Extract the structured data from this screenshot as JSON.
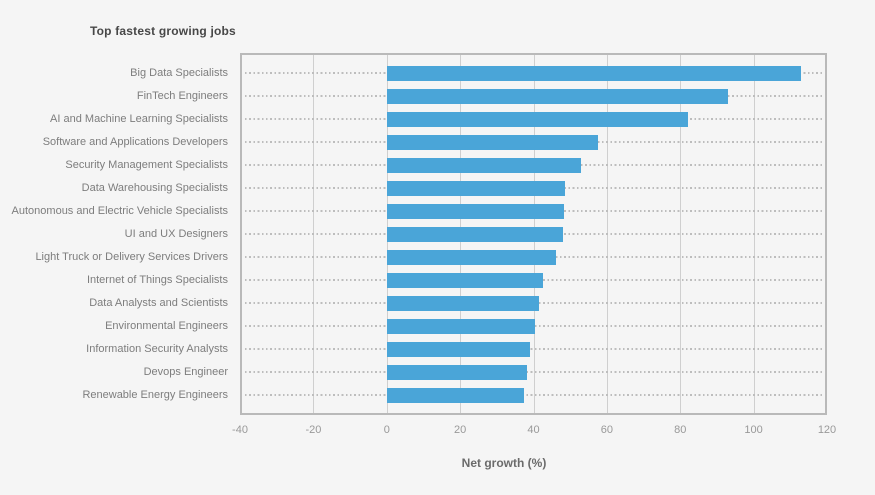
{
  "colors": {
    "background": "#f5f5f5",
    "bar": "#4aa5d8",
    "gridline": "#cfcfcf",
    "plot_border": "#b9b9b9",
    "title_text": "#474747",
    "category_text": "#7d7d7d",
    "tick_text": "#999999"
  },
  "chart_data": {
    "type": "bar",
    "orientation": "horizontal",
    "title": "Top fastest growing jobs",
    "xlabel": "Net growth (%)",
    "ylabel": "",
    "xlim": [
      -40,
      120
    ],
    "xticks": [
      -40,
      -20,
      0,
      20,
      40,
      60,
      80,
      100,
      120
    ],
    "grid": {
      "vertical_lines": "solid",
      "category_guides": "dotted"
    },
    "legend": "none",
    "categories": [
      "Big Data Specialists",
      "FinTech Engineers",
      "AI and Machine Learning Specialists",
      "Software and Applications Developers",
      "Security Management Specialists",
      "Data Warehousing Specialists",
      "Autonomous and Electric Vehicle Specialists",
      "UI and UX Designers",
      "Light Truck or Delivery Services Drivers",
      "Internet of Things Specialists",
      "Data Analysts and Scientists",
      "Environmental Engineers",
      "Information Security Analysts",
      "Devops Engineer",
      "Renewable Energy Engineers"
    ],
    "values": [
      113,
      93,
      82,
      57.5,
      53,
      48.5,
      48.3,
      48,
      46,
      42.5,
      41.4,
      40.3,
      39,
      38.2,
      37.5
    ]
  }
}
